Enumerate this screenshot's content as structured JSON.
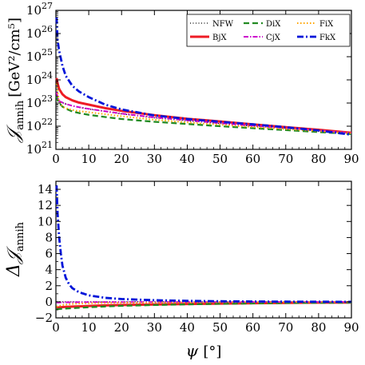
{
  "chart_data": [
    {
      "type": "line",
      "xlabel": "",
      "ylabel": "𝒥annih [GeV²/cm⁵]",
      "ylabel_main": "𝒥",
      "ylabel_sub": "annih",
      "ylabel_unit": "[GeV²/cm⁵]",
      "xlim": [
        0,
        90
      ],
      "ylim": [
        1e+21,
        1e+27
      ],
      "yscale": "log",
      "xticks": [
        "0",
        "10",
        "20",
        "30",
        "40",
        "50",
        "60",
        "70",
        "80",
        "90"
      ],
      "yticks": [
        {
          "value": 1e+21,
          "base": "10",
          "exp": "21"
        },
        {
          "value": 1e+22,
          "base": "10",
          "exp": "22"
        },
        {
          "value": 1e+23,
          "base": "10",
          "exp": "23"
        },
        {
          "value": 1e+24,
          "base": "10",
          "exp": "24"
        },
        {
          "value": 1e+25,
          "base": "10",
          "exp": "25"
        },
        {
          "value": 1e+26,
          "base": "10",
          "exp": "26"
        },
        {
          "value": 1e+27,
          "base": "10",
          "exp": "27"
        }
      ],
      "legend_position": "top-right",
      "x": [
        0.2,
        0.5,
        1,
        2,
        3,
        5,
        7,
        10,
        15,
        20,
        30,
        40,
        50,
        60,
        70,
        80,
        90
      ],
      "series": [
        {
          "name": "NFW",
          "color": "#000000",
          "dash": "1,2.5",
          "width": 1.3,
          "values": [
            3e+23,
            1.6e+23,
            1.2e+23,
            1.05e+23,
            9e+22,
            7.5e+22,
            6.5e+22,
            5.5e+22,
            4.3e+22,
            3.4e+22,
            2.3e+22,
            1.7e+22,
            1.3e+22,
            1e+22,
            8e+21,
            6.3e+21,
            5e+21
          ]
        },
        {
          "name": "BjX",
          "color": "#ee1c25",
          "dash": "",
          "width": 3,
          "values": [
            1.2e+24,
            7e+23,
            4e+23,
            2.4e+23,
            1.8e+23,
            1.3e+23,
            1.05e+23,
            8.5e+22,
            6e+22,
            4.6e+22,
            3e+22,
            2.1e+22,
            1.6e+22,
            1.2e+22,
            9e+21,
            7e+21,
            5.2e+21
          ]
        },
        {
          "name": "DiX",
          "color": "#228b22",
          "dash": "7,4",
          "width": 2.3,
          "values": [
            2e+23,
            1.3e+23,
            1e+23,
            7e+22,
            5.7e+22,
            4.3e+22,
            3.7e+22,
            3.1e+22,
            2.5e+22,
            2.05e+22,
            1.55e+22,
            1.25e+22,
            1e+22,
            8.2e+21,
            6.8e+21,
            5.6e+21,
            4.6e+21
          ]
        },
        {
          "name": "CjX",
          "color": "#cc00cc",
          "dash": "6,2,1.5,2",
          "width": 2,
          "values": [
            3e+23,
            1.7e+23,
            1.2e+23,
            1.05e+23,
            9.2e+22,
            7.6e+22,
            6.6e+22,
            5.6e+22,
            4.4e+22,
            3.5e+22,
            2.4e+22,
            1.8e+22,
            1.35e+22,
            1.05e+22,
            8.3e+21,
            6.5e+21,
            5.1e+21
          ]
        },
        {
          "name": "FiX",
          "color": "#ffa500",
          "dash": "1.5,2.5",
          "width": 2,
          "values": [
            7e+23,
            3e+23,
            1.2e+23,
            7e+22,
            6e+22,
            5e+22,
            4.5e+22,
            4e+22,
            3.3e+22,
            2.7e+22,
            1.9e+22,
            1.45e+22,
            1.15e+22,
            9.2e+21,
            7.5e+21,
            6.1e+21,
            5e+21
          ]
        },
        {
          "name": "FkX",
          "color": "#0015d9",
          "dash": "8,3,2,3",
          "width": 2.8,
          "values": [
            5e+26,
            5e+25,
            1.8e+25,
            4e+24,
            1.5e+24,
            5.5e+23,
            3.2e+23,
            1.8e+23,
            8.5e+22,
            5.3e+22,
            2.9e+22,
            2.05e+22,
            1.55e+22,
            1.2e+22,
            9e+21,
            6.5e+21,
            4.3e+21
          ]
        }
      ]
    },
    {
      "type": "line",
      "xlabel": "ψ [°]",
      "xlabel_main": "ψ",
      "xlabel_unit": "[°]",
      "ylabel": "Δ𝒥annih",
      "ylabel_main": "Δ𝒥",
      "ylabel_sub": "annih",
      "xlim": [
        0,
        90
      ],
      "ylim": [
        -2,
        15
      ],
      "xticks": [
        "0",
        "10",
        "20",
        "30",
        "40",
        "50",
        "60",
        "70",
        "80",
        "90"
      ],
      "yticks": [
        {
          "value": -2,
          "label": "−2"
        },
        {
          "value": 0,
          "label": "0"
        },
        {
          "value": 2,
          "label": "2"
        },
        {
          "value": 4,
          "label": "4"
        },
        {
          "value": 6,
          "label": "6"
        },
        {
          "value": 8,
          "label": "8"
        },
        {
          "value": 10,
          "label": "10"
        },
        {
          "value": 12,
          "label": "12"
        },
        {
          "value": 14,
          "label": "14"
        }
      ],
      "x": [
        0.2,
        0.5,
        1,
        1.5,
        2,
        3,
        4,
        5,
        7,
        10,
        15,
        20,
        30,
        40,
        50,
        60,
        70,
        80,
        90
      ],
      "series": [
        {
          "name": "NFW",
          "color": "#000000",
          "dash": "1,2.5",
          "width": 1.3,
          "values": [
            0,
            0,
            0,
            0,
            0,
            0,
            0,
            0,
            0,
            0,
            0,
            0,
            0,
            0,
            0,
            0,
            0,
            0,
            0
          ]
        },
        {
          "name": "BjX",
          "color": "#ee1c25",
          "dash": "",
          "width": 3,
          "values": [
            -0.75,
            -0.72,
            -0.7,
            -0.68,
            -0.66,
            -0.64,
            -0.62,
            -0.6,
            -0.57,
            -0.52,
            -0.45,
            -0.4,
            -0.33,
            -0.27,
            -0.22,
            -0.17,
            -0.13,
            -0.1,
            -0.08
          ]
        },
        {
          "name": "DiX",
          "color": "#228b22",
          "dash": "7,4",
          "width": 2.3,
          "values": [
            -0.95,
            -0.92,
            -0.9,
            -0.88,
            -0.86,
            -0.84,
            -0.82,
            -0.8,
            -0.75,
            -0.68,
            -0.58,
            -0.5,
            -0.4,
            -0.32,
            -0.25,
            -0.2,
            -0.15,
            -0.12,
            -0.1
          ]
        },
        {
          "name": "CjX",
          "color": "#cc00cc",
          "dash": "6,2,1.5,2",
          "width": 2,
          "values": [
            -0.1,
            -0.09,
            -0.08,
            -0.07,
            -0.07,
            -0.06,
            -0.06,
            -0.05,
            -0.05,
            -0.04,
            -0.04,
            -0.03,
            -0.03,
            -0.02,
            -0.02,
            -0.02,
            -0.01,
            -0.01,
            -0.01
          ]
        },
        {
          "name": "FiX",
          "color": "#ffa500",
          "dash": "1.5,2.5",
          "width": 2,
          "values": [
            -0.6,
            -0.55,
            -0.5,
            -0.45,
            -0.4,
            -0.35,
            -0.3,
            -0.27,
            -0.22,
            -0.18,
            -0.14,
            -0.12,
            -0.09,
            -0.07,
            -0.05,
            -0.04,
            -0.03,
            -0.02,
            -0.02
          ]
        },
        {
          "name": "FkX",
          "color": "#0015d9",
          "dash": "8,3,2,3",
          "width": 2.8,
          "values": [
            14.5,
            11,
            8,
            6,
            4.5,
            3,
            2.2,
            1.7,
            1.2,
            0.8,
            0.5,
            0.35,
            0.2,
            0.12,
            0.07,
            0.04,
            0.02,
            0.01,
            0
          ]
        }
      ]
    }
  ]
}
